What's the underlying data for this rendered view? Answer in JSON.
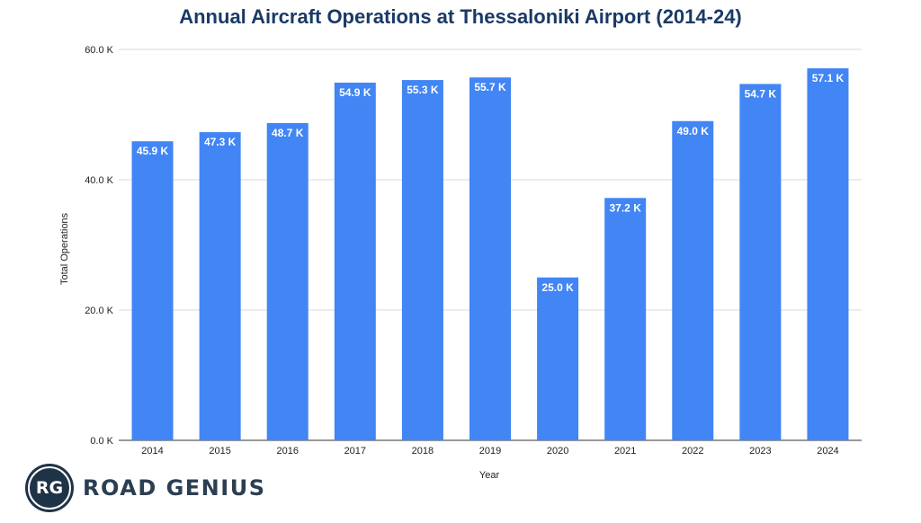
{
  "chart_data": {
    "type": "bar",
    "title": "Annual Aircraft Operations at Thessaloniki Airport (2014-24)",
    "xlabel": "Year",
    "ylabel": "Total Operations",
    "categories": [
      "2014",
      "2015",
      "2016",
      "2017",
      "2018",
      "2019",
      "2020",
      "2021",
      "2022",
      "2023",
      "2024"
    ],
    "values": [
      45.9,
      47.3,
      48.7,
      54.9,
      55.3,
      55.7,
      25.0,
      37.2,
      49.0,
      54.7,
      57.1
    ],
    "data_labels": [
      "45.9 K",
      "47.3 K",
      "48.7 K",
      "54.9 K",
      "55.3 K",
      "55.7 K",
      "25.0 K",
      "37.2 K",
      "49.0 K",
      "54.7 K",
      "57.1 K"
    ],
    "y_ticks": [
      0,
      20,
      40,
      60
    ],
    "y_tick_labels": [
      "0.0 K",
      "20.0 K",
      "40.0 K",
      "60.0 K"
    ],
    "ylim": [
      0,
      60
    ],
    "grid": true,
    "legend": "none",
    "bar_color": "#4285f4"
  },
  "brand": {
    "initials": "RG",
    "name": "ROAD GENIUS"
  }
}
